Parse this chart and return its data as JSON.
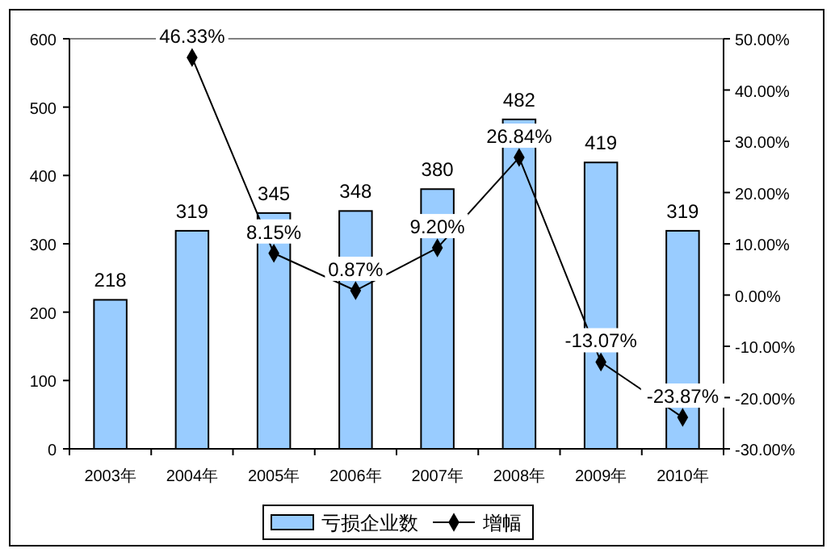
{
  "chart_data": {
    "type": "bar",
    "categories": [
      "2003年",
      "2004年",
      "2005年",
      "2006年",
      "2007年",
      "2008年",
      "2009年",
      "2010年"
    ],
    "series": [
      {
        "name": "亏损企业数",
        "color": "#99ccff",
        "values": [
          218,
          319,
          345,
          348,
          380,
          482,
          419,
          319
        ],
        "value_labels": [
          "218",
          "319",
          "345",
          "348",
          "380",
          "482",
          "419",
          "319"
        ]
      },
      {
        "type": "line",
        "name": "增幅",
        "color": "#000000",
        "axis": "y2",
        "marker": "diamond",
        "values": [
          null,
          46.33,
          8.15,
          0.87,
          9.2,
          26.84,
          -13.07,
          -23.87
        ],
        "value_labels": [
          null,
          "46.33%",
          "8.15%",
          "0.87%",
          "9.20%",
          "26.84%",
          "-13.07%",
          "-23.87%"
        ]
      }
    ],
    "ylim": [
      0,
      600
    ],
    "yticks": [
      0,
      100,
      200,
      300,
      400,
      500,
      600
    ],
    "y2lim": [
      -30,
      50
    ],
    "y2ticks": [
      {
        "value": -30,
        "label": "-30.00%"
      },
      {
        "value": -20,
        "label": "-20.00%"
      },
      {
        "value": -10,
        "label": "-10.00%"
      },
      {
        "value": 0,
        "label": "0.00%"
      },
      {
        "value": 10,
        "label": "10.00%"
      },
      {
        "value": 20,
        "label": "20.00%"
      },
      {
        "value": 30,
        "label": "30.00%"
      },
      {
        "value": 40,
        "label": "40.00%"
      },
      {
        "value": 50,
        "label": "50.00%"
      }
    ],
    "grid": false,
    "legend": "bottom"
  }
}
